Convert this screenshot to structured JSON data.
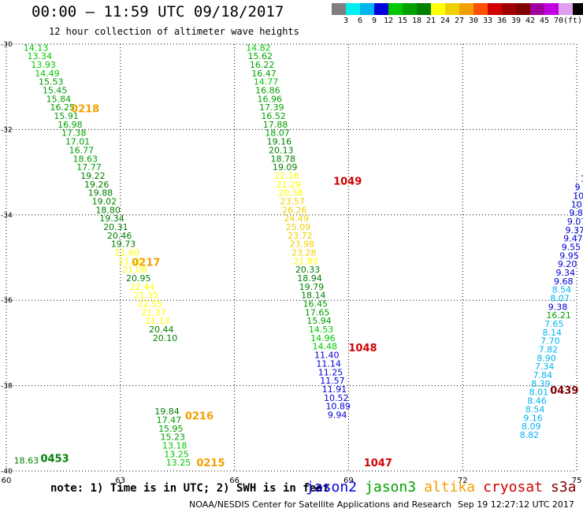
{
  "title": "00:00 – 11:59 UTC 09/18/2017",
  "subtitle": "12 hour collection of altimeter wave heights",
  "colorbar": {
    "colors": [
      "#7f7f7f",
      "#00f0f0",
      "#00b4f0",
      "#0000d8",
      "#00c800",
      "#00a000",
      "#008000",
      "#ffff00",
      "#f0d000",
      "#f0a000",
      "#ff5000",
      "#d00000",
      "#a00000",
      "#800000",
      "#a000a0",
      "#c000e0",
      "#e0a0f0",
      "#000000"
    ],
    "ticks": [
      "3",
      "6",
      "9",
      "12",
      "15",
      "18",
      "21",
      "24",
      "27",
      "30",
      "33",
      "36",
      "39",
      "42",
      "45",
      "70",
      "(ft)"
    ]
  },
  "footnote": "note:  1) Time is in UTC;  2) SWH is in feet",
  "legend": [
    {
      "label": "jason2",
      "color": "#0000d8"
    },
    {
      "label": "jason3",
      "color": "#00a000"
    },
    {
      "label": "altika",
      "color": "#f0a000"
    },
    {
      "label": "cryosat",
      "color": "#d00000"
    },
    {
      "label": "s3a",
      "color": "#800000"
    }
  ],
  "credit": "NOAA/NESDIS Center for Satellite Applications and Research",
  "credit_time": "Sep 19 12:27:12 UTC 2017",
  "chart_data": {
    "type": "scatter",
    "title": "00:00 – 11:59 UTC 09/18/2017",
    "subtitle": "12 hour collection of altimeter wave heights",
    "xlim": [
      60,
      75
    ],
    "ylim": [
      -40,
      -30
    ],
    "x_ticks": [
      "60",
      "63",
      "66",
      "69",
      "72",
      "75"
    ],
    "y_ticks": [
      "-30",
      "-32",
      "-34",
      "-36",
      "-38",
      "-40"
    ],
    "grid": true,
    "tracks": [
      {
        "name": "track-west",
        "x": [
          60.45,
          60.55,
          60.65,
          60.75,
          60.85,
          60.95,
          61.05,
          61.15,
          61.25,
          61.35,
          61.45,
          61.55,
          61.65,
          61.75,
          61.85,
          61.95,
          62.05,
          62.15,
          62.25,
          62.35,
          62.45,
          62.55,
          62.65,
          62.75,
          62.85,
          62.95,
          63.05,
          63.15,
          63.25,
          63.35,
          63.45,
          63.55,
          63.65,
          63.75,
          63.85
        ],
        "y": [
          -30.08,
          -30.28,
          -30.48,
          -30.68,
          -30.88,
          -31.08,
          -31.28,
          -31.48,
          -31.68,
          -31.88,
          -32.08,
          -32.28,
          -32.48,
          -32.68,
          -32.88,
          -33.08,
          -33.28,
          -33.48,
          -33.68,
          -33.88,
          -34.08,
          -34.28,
          -34.48,
          -34.68,
          -34.88,
          -35.08,
          -35.28,
          -35.48,
          -35.68,
          -35.88,
          -36.08,
          -36.28,
          -36.48,
          -36.68,
          -36.88
        ],
        "values": [
          "14.13",
          "13.34",
          "13.93",
          "14.49",
          "15.53",
          "15.45",
          "15.84",
          "16.25",
          "15.91",
          "16.98",
          "17.38",
          "17.01",
          "16.77",
          "18.63",
          "17.77",
          "19.22",
          "19.26",
          "19.88",
          "19.02",
          "18.80",
          "19.34",
          "20.31",
          "20.46",
          "19.73",
          "21.60",
          "21.42",
          "21.08",
          "20.95",
          "22.44",
          "21.55",
          "22.55",
          "21.37",
          "21.13",
          "20.44",
          "20.10"
        ],
        "colors": [
          "#00c800",
          "#00c800",
          "#00c800",
          "#00c800",
          "#00a000",
          "#00a000",
          "#00a000",
          "#00a000",
          "#00a000",
          "#00a000",
          "#00a000",
          "#00a000",
          "#00a000",
          "#00a000",
          "#00a000",
          "#008000",
          "#008000",
          "#008000",
          "#008000",
          "#008000",
          "#008000",
          "#008000",
          "#008000",
          "#008000",
          "#ffff00",
          "#ffff00",
          "#ffff00",
          "#008000",
          "#ffff00",
          "#ffff00",
          "#ffff00",
          "#ffff00",
          "#ffff00",
          "#008000",
          "#008000"
        ]
      },
      {
        "name": "track-west-lower",
        "x": [
          63.9,
          63.95,
          64.0,
          64.05,
          64.1,
          64.15,
          64.2,
          60.2
        ],
        "y": [
          -38.6,
          -38.8,
          -39.0,
          -39.2,
          -39.4,
          -39.6,
          -39.8,
          -39.75
        ],
        "values": [
          "19.84",
          "17.47",
          "15.95",
          "15.23",
          "13.18",
          "13.25",
          "13.25",
          "18.63"
        ],
        "colors": [
          "#008000",
          "#00a000",
          "#00a000",
          "#00a000",
          "#00c800",
          "#00c800",
          "#00c800",
          "#008000"
        ]
      },
      {
        "name": "track-center",
        "x": [
          66.3,
          66.35,
          66.4,
          66.45,
          66.5,
          66.55,
          66.6,
          66.65,
          66.7,
          66.75,
          66.8,
          66.85,
          66.9,
          66.95,
          67.0,
          67.05,
          67.1,
          67.15,
          67.2,
          67.25,
          67.3,
          67.35,
          67.4,
          67.45,
          67.5,
          67.55,
          67.6,
          67.65,
          67.7,
          67.75,
          67.8,
          67.85,
          67.9,
          67.95,
          68.0,
          68.05,
          68.1,
          68.15,
          68.2,
          68.25,
          68.3,
          68.35,
          68.4,
          68.45
        ],
        "y": [
          -30.08,
          -30.28,
          -30.48,
          -30.68,
          -30.88,
          -31.08,
          -31.28,
          -31.48,
          -31.68,
          -31.88,
          -32.08,
          -32.28,
          -32.48,
          -32.68,
          -32.88,
          -33.08,
          -33.28,
          -33.48,
          -33.68,
          -33.88,
          -34.08,
          -34.28,
          -34.48,
          -34.68,
          -34.88,
          -35.08,
          -35.28,
          -35.48,
          -35.68,
          -35.88,
          -36.08,
          -36.28,
          -36.48,
          -36.68,
          -36.88,
          -37.08,
          -37.28,
          -37.48,
          -37.68,
          -37.88,
          -38.08,
          -38.28,
          -38.48,
          -38.68
        ],
        "values": [
          "14.82",
          "15.62",
          "16.22",
          "16.47",
          "14.77",
          "16.86",
          "16.96",
          "17.39",
          "16.52",
          "17.88",
          "18.07",
          "19.16",
          "20.13",
          "18.78",
          "19.09",
          "22.16",
          "21.29",
          "20.38",
          "23.57",
          "26.26",
          "24.49",
          "25.09",
          "23.72",
          "23.98",
          "23.28",
          "21.85",
          "20.33",
          "18.94",
          "19.79",
          "18.14",
          "16.45",
          "17.65",
          "15.94",
          "14.53",
          "14.96",
          "14.48",
          "11.40",
          "11.14",
          "11.25",
          "11.57",
          "11.91",
          "10.52",
          "10.89",
          "9.94"
        ],
        "colors": [
          "#00c800",
          "#00a000",
          "#00a000",
          "#00a000",
          "#00c800",
          "#00a000",
          "#00a000",
          "#00a000",
          "#00a000",
          "#00a000",
          "#00a000",
          "#008000",
          "#008000",
          "#008000",
          "#008000",
          "#ffff00",
          "#ffff00",
          "#ffff00",
          "#f0d000",
          "#f0d000",
          "#f0d000",
          "#f0d000",
          "#f0d000",
          "#f0d000",
          "#f0d000",
          "#ffff00",
          "#008000",
          "#008000",
          "#008000",
          "#008000",
          "#00a000",
          "#00a000",
          "#00a000",
          "#00c800",
          "#00c800",
          "#00c800",
          "#0000d8",
          "#0000d8",
          "#0000d8",
          "#0000d8",
          "#0000d8",
          "#0000d8",
          "#0000d8",
          "#0000d8"
        ]
      },
      {
        "name": "track-east",
        "x": [
          75.1,
          74.95,
          74.9,
          74.85,
          74.8,
          74.75,
          74.7,
          74.65,
          74.6,
          74.55,
          74.5,
          74.45,
          74.4,
          74.35,
          74.3,
          74.25,
          74.2,
          74.15,
          74.1,
          74.05,
          74.0,
          73.95,
          73.9,
          73.85,
          73.8,
          73.75,
          73.7,
          73.65,
          73.6,
          73.55,
          73.5,
          73.45,
          73.4,
          73.35,
          73.3,
          73.25,
          73.2,
          73.15,
          73.1,
          73.05
        ],
        "y": [
          -33.15,
          -33.35,
          -33.55,
          -33.75,
          -33.95,
          -34.15,
          -34.35,
          -34.55,
          -34.75,
          -34.95,
          -35.15,
          -35.35,
          -35.55,
          -35.75,
          -35.95,
          -36.15,
          -36.35,
          -36.55,
          -36.75,
          -36.95,
          -37.15,
          -37.35,
          -37.55,
          -37.75,
          -37.95,
          -38.15,
          -38.35,
          -38.55,
          -38.75,
          -38.95,
          -39.15,
          -39.35,
          -39.55,
          -39.75,
          -39.95,
          -40.15,
          -40.35,
          -40.55,
          -40.75,
          -40.95
        ],
        "values": [
          "1",
          "9",
          "10",
          "10.",
          "9.8",
          "9.07",
          "9.37",
          "9.47",
          "9.55",
          "9.95",
          "9.20",
          "9.34",
          "9.68",
          "8.54",
          "8.07",
          "9.38",
          "16.21",
          "7.65",
          "8.14",
          "7.70",
          "7.82",
          "8.90",
          "7.34",
          "7.84",
          "8.39",
          "8.01",
          "8.46",
          "8.54",
          "9.16",
          "8.09",
          "8.82",
          "",
          "",
          "",
          "",
          "",
          "",
          "",
          "",
          ""
        ],
        "colors": [
          "#0000d8",
          "#0000d8",
          "#0000d8",
          "#0000d8",
          "#0000d8",
          "#0000d8",
          "#0000d8",
          "#0000d8",
          "#0000d8",
          "#0000d8",
          "#0000d8",
          "#0000d8",
          "#0000d8",
          "#00b4f0",
          "#00b4f0",
          "#0000d8",
          "#00a000",
          "#00b4f0",
          "#00b4f0",
          "#00b4f0",
          "#00b4f0",
          "#00b4f0",
          "#00b4f0",
          "#00b4f0",
          "#00b4f0",
          "#00b4f0",
          "#00b4f0",
          "#00b4f0",
          "#00b4f0",
          "#00b4f0",
          "#00b4f0",
          "#00b4f0",
          "#00b4f0",
          "#00b4f0",
          "#00b4f0",
          "#00b4f0",
          "#00b4f0",
          "#00b4f0",
          "#00b4f0",
          "#00b4f0"
        ]
      }
    ],
    "time_labels": [
      {
        "text": "0218",
        "x": 61.7,
        "y": -31.5,
        "color": "#f0a000"
      },
      {
        "text": "0217",
        "x": 63.3,
        "y": -35.1,
        "color": "#f0a000"
      },
      {
        "text": "0216",
        "x": 64.7,
        "y": -38.7,
        "color": "#f0a000"
      },
      {
        "text": "0215",
        "x": 65.0,
        "y": -39.8,
        "color": "#f0a000"
      },
      {
        "text": "0453",
        "x": 60.9,
        "y": -39.7,
        "color": "#008000"
      },
      {
        "text": "1049",
        "x": 68.6,
        "y": -33.2,
        "color": "#d00000"
      },
      {
        "text": "1048",
        "x": 69.0,
        "y": -37.1,
        "color": "#d00000"
      },
      {
        "text": "1047",
        "x": 69.4,
        "y": -39.8,
        "color": "#d00000"
      },
      {
        "text": "0439",
        "x": 74.3,
        "y": -38.1,
        "color": "#800000"
      }
    ]
  }
}
